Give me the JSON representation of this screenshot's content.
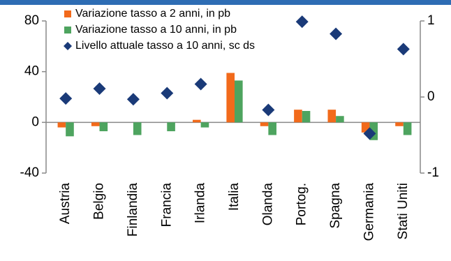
{
  "chart_data": {
    "type": "bar",
    "categories": [
      "Austria",
      "Belgio",
      "Finlandia",
      "Francia",
      "Irlanda",
      "Italia",
      "Olanda",
      "Portog.",
      "Spagna",
      "Germania",
      "Stati Uniti"
    ],
    "series": [
      {
        "name": "Variazione tasso a 2 anni, in pb",
        "color": "#f26a1b",
        "values": [
          -4,
          -3,
          0,
          0,
          2,
          39,
          -3,
          10,
          10,
          -8,
          -3
        ]
      },
      {
        "name": "Variazione tasso a 10 anni, in pb",
        "color": "#4ea45f",
        "values": [
          -11,
          -7,
          -10,
          -7,
          -4,
          33,
          -10,
          9,
          5,
          -14,
          -10
        ]
      },
      {
        "name": "Livello attuale tasso a 10 anni, sc ds",
        "color": "#1a3a78",
        "axis": "y2",
        "marker": "diamond",
        "values": [
          -0.02,
          0.11,
          -0.03,
          0.05,
          0.17,
          null,
          -0.17,
          0.99,
          0.83,
          -0.48,
          0.63
        ]
      }
    ],
    "ylim": [
      -40,
      80
    ],
    "yticks": [
      -40,
      0,
      40,
      80
    ],
    "y2lim": [
      -1,
      1
    ],
    "y2ticks": [
      -1,
      0,
      1
    ],
    "legend": "upper left"
  }
}
